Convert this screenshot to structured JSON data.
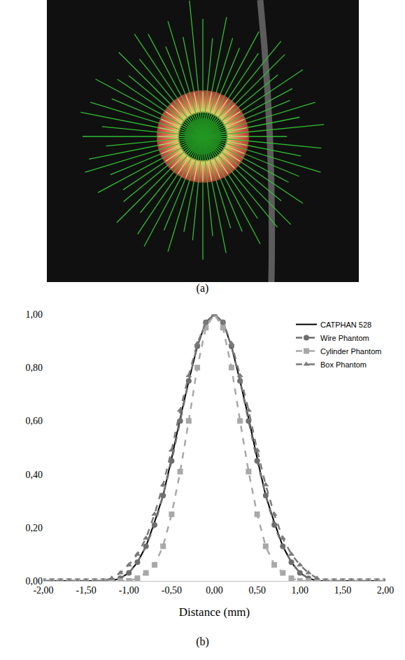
{
  "panel_labels": [
    "(a)",
    "(b)"
  ],
  "chart_data": {
    "type": "line",
    "x_label": "Distance (mm)",
    "x": [
      -2.0,
      -1.9,
      -1.8,
      -1.7,
      -1.6,
      -1.5,
      -1.4,
      -1.3,
      -1.2,
      -1.1,
      -1.0,
      -0.9,
      -0.8,
      -0.7,
      -0.6,
      -0.5,
      -0.4,
      -0.3,
      -0.2,
      -0.1,
      0.0,
      0.1,
      0.2,
      0.3,
      0.4,
      0.5,
      0.6,
      0.7,
      0.8,
      0.9,
      1.0,
      1.1,
      1.2,
      1.3,
      1.4,
      1.5,
      1.6,
      1.7,
      1.8,
      1.9,
      2.0
    ],
    "series": [
      {
        "name": "CATPHAN 528",
        "color": "#000000",
        "line_style": "solid",
        "marker": "none",
        "values": [
          0,
          0,
          0,
          0,
          0,
          0,
          0,
          0,
          0,
          0.01,
          0.03,
          0.07,
          0.13,
          0.22,
          0.32,
          0.46,
          0.61,
          0.75,
          0.88,
          0.97,
          1,
          0.97,
          0.88,
          0.75,
          0.61,
          0.46,
          0.32,
          0.22,
          0.13,
          0.07,
          0.03,
          0.01,
          0,
          0,
          0,
          0,
          0,
          0,
          0,
          0,
          0
        ]
      },
      {
        "name": "Wire Phantom",
        "color": "#6e6e6e",
        "line_style": "dash",
        "marker": "circle",
        "values": [
          0,
          0,
          0,
          0,
          0,
          0,
          0,
          0,
          0,
          0.01,
          0.03,
          0.07,
          0.13,
          0.21,
          0.32,
          0.45,
          0.6,
          0.75,
          0.88,
          0.97,
          1,
          0.97,
          0.88,
          0.75,
          0.6,
          0.45,
          0.32,
          0.21,
          0.13,
          0.07,
          0.03,
          0.01,
          0,
          0,
          0,
          0,
          0,
          0,
          0,
          0,
          0
        ]
      },
      {
        "name": "Cylinder Phantom",
        "color": "#a8a8a8",
        "line_style": "dash",
        "marker": "square",
        "values": [
          0,
          0,
          0,
          0,
          0,
          0,
          0,
          0,
          0,
          0,
          0,
          0.01,
          0.03,
          0.06,
          0.13,
          0.25,
          0.41,
          0.6,
          0.8,
          0.95,
          1,
          0.95,
          0.8,
          0.6,
          0.41,
          0.25,
          0.13,
          0.06,
          0.03,
          0.01,
          0,
          0,
          0,
          0,
          0,
          0,
          0,
          0,
          0,
          0,
          0
        ]
      },
      {
        "name": "Box Phantom",
        "color": "#7a7a7a",
        "line_style": "dash",
        "marker": "triangle-up",
        "values": [
          0,
          0,
          0,
          0,
          0,
          0,
          0,
          0,
          0.01,
          0.03,
          0.06,
          0.1,
          0.16,
          0.25,
          0.36,
          0.49,
          0.64,
          0.77,
          0.89,
          0.97,
          1,
          0.97,
          0.89,
          0.77,
          0.64,
          0.49,
          0.36,
          0.25,
          0.16,
          0.1,
          0.06,
          0.03,
          0.01,
          0,
          0,
          0,
          0,
          0,
          0,
          0,
          0
        ]
      }
    ],
    "xlim": [
      -2,
      2
    ],
    "ylim": [
      0,
      1
    ],
    "xticks": [
      {
        "value": -2,
        "label": "-2,00"
      },
      {
        "value": -1.5,
        "label": "-1,50"
      },
      {
        "value": -1,
        "label": "-1,00"
      },
      {
        "value": -0.5,
        "label": "-0,50"
      },
      {
        "value": 0,
        "label": "0,00"
      },
      {
        "value": 0.5,
        "label": "0,50"
      },
      {
        "value": 1,
        "label": "1,00"
      },
      {
        "value": 1.5,
        "label": "1,50"
      },
      {
        "value": 2,
        "label": "2,00"
      }
    ],
    "yticks": [
      {
        "value": 0,
        "label": "0,00"
      },
      {
        "value": 0.2,
        "label": "0,20"
      },
      {
        "value": 0.4,
        "label": "0,40"
      },
      {
        "value": 0.6,
        "label": "0,60"
      },
      {
        "value": 0.8,
        "label": "0,80"
      },
      {
        "value": 1,
        "label": "1,00"
      }
    ],
    "grid": false,
    "legend": "top right"
  }
}
